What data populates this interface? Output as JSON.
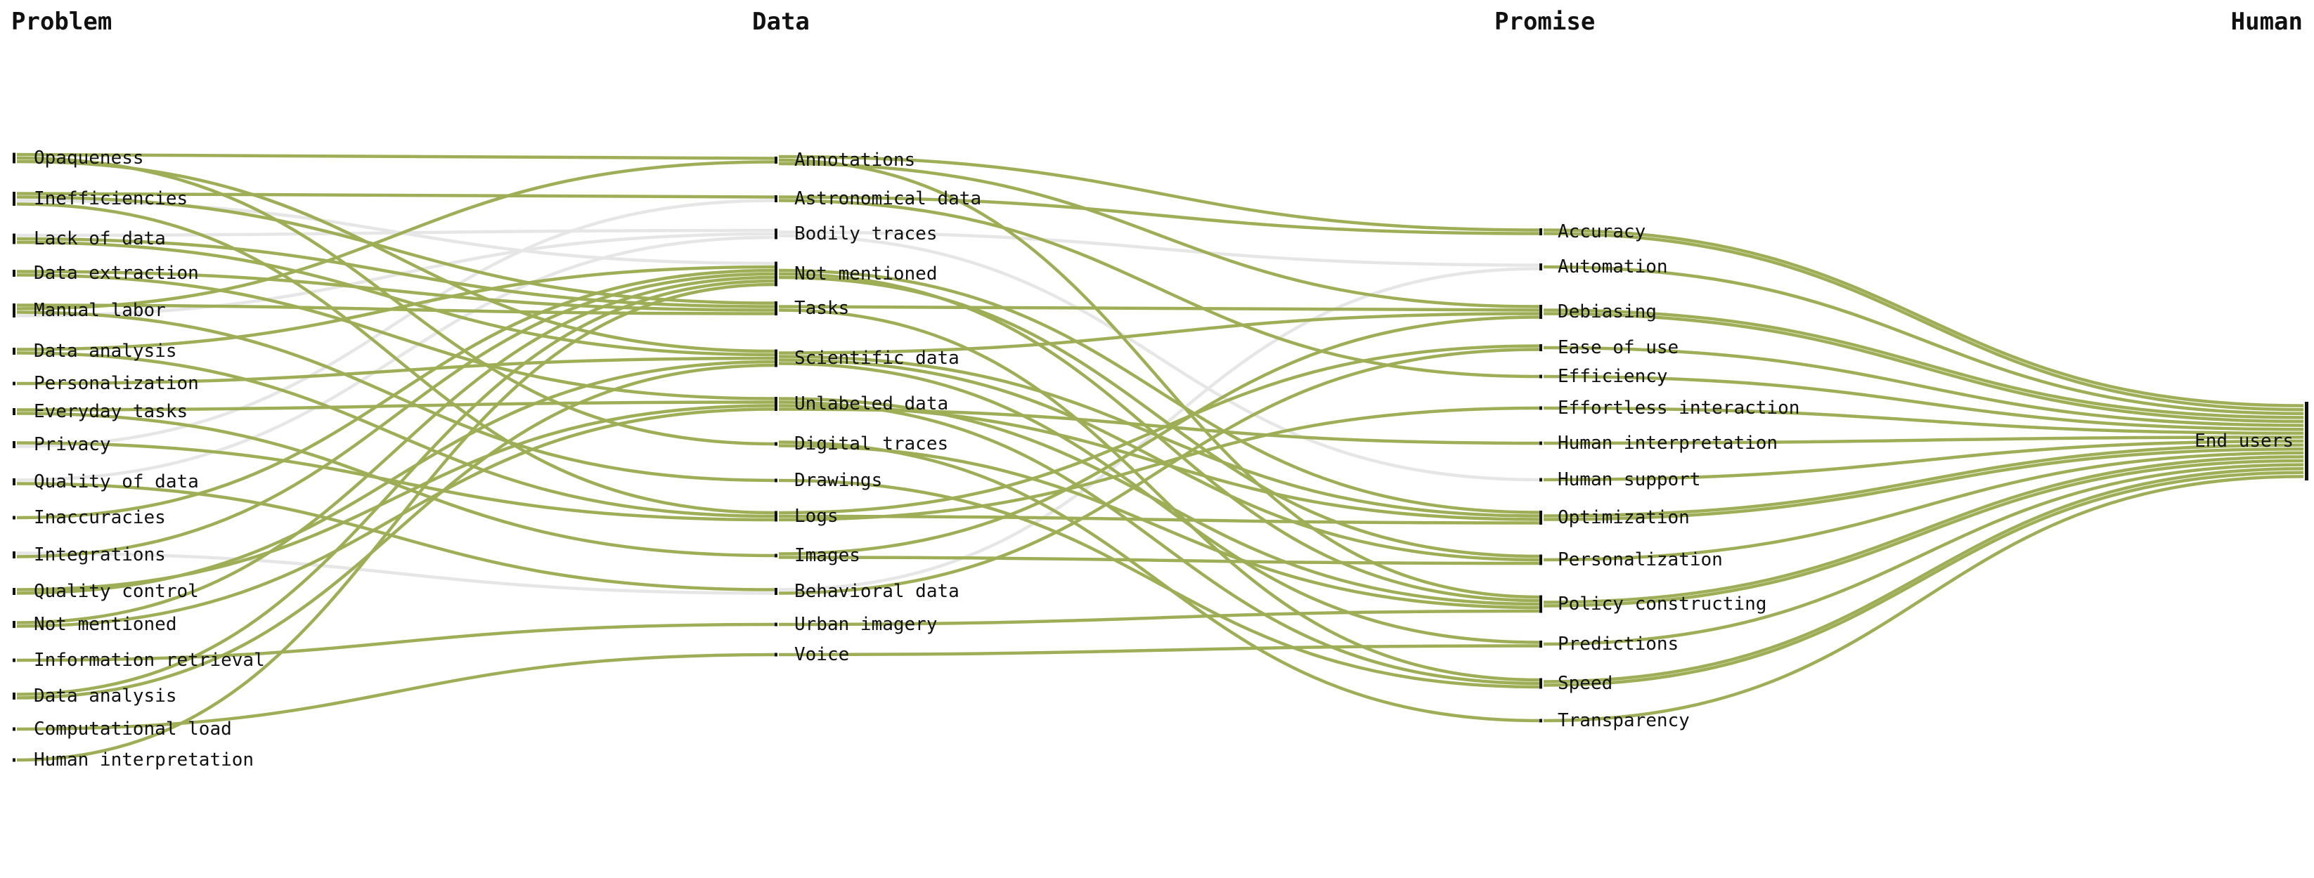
{
  "columns": [
    {
      "key": "problem",
      "label": "Problem"
    },
    {
      "key": "data",
      "label": "Data"
    },
    {
      "key": "promise",
      "label": "Promise"
    },
    {
      "key": "human",
      "label": "Human"
    }
  ],
  "colors": {
    "link_primary": "#9eae56",
    "link_faded": "#e6e6e6",
    "node": "#111111",
    "background": "#ffffff"
  },
  "nodes": {
    "problem": [
      "Opaqueness",
      "Inefficiencies",
      "Lack of data",
      "Data extraction",
      "Manual labor",
      "Data analysis",
      "Personalization",
      "Everyday tasks",
      "Privacy",
      "Quality of data",
      "Inaccuracies",
      "Integrations",
      "Quality control",
      "Not mentioned",
      "Information retrieval",
      "Data analysis",
      "Computational load",
      "Human interpretation"
    ],
    "data": [
      "Annotations",
      "Astronomical data",
      "Bodily traces",
      "Not mentioned",
      "Tasks",
      "Scientific data",
      "Unlabeled data",
      "Digital traces",
      "Drawings",
      "Logs",
      "Images",
      "Behavioral data",
      "Urban imagery",
      "Voice"
    ],
    "promise": [
      "Accuracy",
      "Automation",
      "Debiasing",
      "Ease of use",
      "Efficiency",
      "Effortless interaction",
      "Human interpretation",
      "Human support",
      "Optimization",
      "Personalization",
      "Policy constructing",
      "Predictions",
      "Speed",
      "Transparency"
    ],
    "human": [
      "End users"
    ]
  },
  "links": {
    "problem_data": [
      [
        0,
        0,
        "primary"
      ],
      [
        0,
        7,
        "primary"
      ],
      [
        0,
        5,
        "primary"
      ],
      [
        1,
        1,
        "primary"
      ],
      [
        1,
        4,
        "primary"
      ],
      [
        1,
        3,
        "faded"
      ],
      [
        1,
        9,
        "primary"
      ],
      [
        2,
        2,
        "faded"
      ],
      [
        2,
        4,
        "primary"
      ],
      [
        2,
        5,
        "primary"
      ],
      [
        3,
        4,
        "primary"
      ],
      [
        3,
        6,
        "primary"
      ],
      [
        4,
        4,
        "primary"
      ],
      [
        4,
        0,
        "primary"
      ],
      [
        4,
        8,
        "primary"
      ],
      [
        4,
        2,
        "faded"
      ],
      [
        5,
        3,
        "primary"
      ],
      [
        5,
        9,
        "primary"
      ],
      [
        6,
        5,
        "primary"
      ],
      [
        7,
        6,
        "primary"
      ],
      [
        7,
        10,
        "primary"
      ],
      [
        8,
        9,
        "primary"
      ],
      [
        8,
        1,
        "faded"
      ],
      [
        9,
        2,
        "faded"
      ],
      [
        9,
        11,
        "primary"
      ],
      [
        10,
        3,
        "primary"
      ],
      [
        11,
        11,
        "faded"
      ],
      [
        11,
        3,
        "primary"
      ],
      [
        12,
        6,
        "primary"
      ],
      [
        12,
        5,
        "primary"
      ],
      [
        13,
        3,
        "primary"
      ],
      [
        13,
        6,
        "primary"
      ],
      [
        14,
        12,
        "primary"
      ],
      [
        15,
        3,
        "primary"
      ],
      [
        15,
        5,
        "primary"
      ],
      [
        16,
        13,
        "primary"
      ],
      [
        17,
        3,
        "primary"
      ]
    ],
    "data_promise": [
      [
        0,
        0,
        "primary"
      ],
      [
        0,
        10,
        "primary"
      ],
      [
        0,
        2,
        "primary"
      ],
      [
        1,
        0,
        "primary"
      ],
      [
        1,
        4,
        "primary"
      ],
      [
        2,
        1,
        "faded"
      ],
      [
        2,
        7,
        "faded"
      ],
      [
        3,
        8,
        "primary"
      ],
      [
        3,
        10,
        "primary"
      ],
      [
        3,
        9,
        "primary"
      ],
      [
        4,
        2,
        "primary"
      ],
      [
        4,
        12,
        "primary"
      ],
      [
        5,
        2,
        "primary"
      ],
      [
        5,
        8,
        "primary"
      ],
      [
        5,
        9,
        "primary"
      ],
      [
        5,
        11,
        "primary"
      ],
      [
        6,
        10,
        "primary"
      ],
      [
        6,
        12,
        "primary"
      ],
      [
        6,
        8,
        "primary"
      ],
      [
        6,
        6,
        "primary"
      ],
      [
        7,
        13,
        "primary"
      ],
      [
        7,
        10,
        "primary"
      ],
      [
        8,
        12,
        "primary"
      ],
      [
        9,
        3,
        "primary"
      ],
      [
        9,
        8,
        "primary"
      ],
      [
        9,
        5,
        "primary"
      ],
      [
        10,
        2,
        "primary"
      ],
      [
        10,
        9,
        "primary"
      ],
      [
        11,
        1,
        "faded"
      ],
      [
        11,
        3,
        "primary"
      ],
      [
        12,
        10,
        "primary"
      ],
      [
        13,
        11,
        "primary"
      ]
    ],
    "promise_human": [
      [
        0,
        0,
        "primary"
      ],
      [
        0,
        0,
        "primary"
      ],
      [
        1,
        0,
        "primary"
      ],
      [
        2,
        0,
        "primary"
      ],
      [
        2,
        0,
        "primary"
      ],
      [
        3,
        0,
        "primary"
      ],
      [
        4,
        0,
        "primary"
      ],
      [
        5,
        0,
        "primary"
      ],
      [
        6,
        0,
        "primary"
      ],
      [
        7,
        0,
        "primary"
      ],
      [
        8,
        0,
        "primary"
      ],
      [
        8,
        0,
        "primary"
      ],
      [
        9,
        0,
        "primary"
      ],
      [
        10,
        0,
        "primary"
      ],
      [
        10,
        0,
        "primary"
      ],
      [
        11,
        0,
        "primary"
      ],
      [
        12,
        0,
        "primary"
      ],
      [
        12,
        0,
        "primary"
      ],
      [
        13,
        0,
        "primary"
      ]
    ]
  }
}
